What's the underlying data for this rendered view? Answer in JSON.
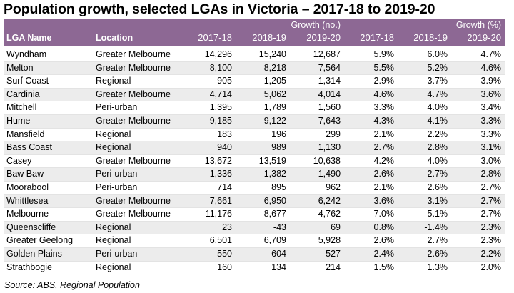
{
  "title": "Population growth, selected LGAs in Victoria – 2017-18 to 2019-20",
  "header": {
    "group_no": "Growth (no.)",
    "group_pct": "Growth (%)",
    "col_name": "LGA Name",
    "col_location": "Location",
    "years": [
      "2017-18",
      "2018-19",
      "2019-20"
    ]
  },
  "rows": [
    {
      "name": "Wyndham",
      "location": "Greater Melbourne",
      "n1": "14,296",
      "n2": "15,240",
      "n3": "12,687",
      "p1": "5.9%",
      "p2": "6.0%",
      "p3": "4.7%"
    },
    {
      "name": "Melton",
      "location": "Greater Melbourne",
      "n1": "8,100",
      "n2": "8,218",
      "n3": "7,564",
      "p1": "5.5%",
      "p2": "5.2%",
      "p3": "4.6%"
    },
    {
      "name": "Surf Coast",
      "location": "Regional",
      "n1": "905",
      "n2": "1,205",
      "n3": "1,314",
      "p1": "2.9%",
      "p2": "3.7%",
      "p3": "3.9%"
    },
    {
      "name": "Cardinia",
      "location": "Greater Melbourne",
      "n1": "4,714",
      "n2": "5,062",
      "n3": "4,014",
      "p1": "4.6%",
      "p2": "4.7%",
      "p3": "3.6%"
    },
    {
      "name": "Mitchell",
      "location": "Peri-urban",
      "n1": "1,395",
      "n2": "1,789",
      "n3": "1,560",
      "p1": "3.3%",
      "p2": "4.0%",
      "p3": "3.4%"
    },
    {
      "name": "Hume",
      "location": "Greater Melbourne",
      "n1": "9,185",
      "n2": "9,122",
      "n3": "7,643",
      "p1": "4.3%",
      "p2": "4.1%",
      "p3": "3.3%"
    },
    {
      "name": "Mansfield",
      "location": "Regional",
      "n1": "183",
      "n2": "196",
      "n3": "299",
      "p1": "2.1%",
      "p2": "2.2%",
      "p3": "3.3%"
    },
    {
      "name": "Bass Coast",
      "location": "Regional",
      "n1": "940",
      "n2": "989",
      "n3": "1,130",
      "p1": "2.7%",
      "p2": "2.8%",
      "p3": "3.1%"
    },
    {
      "name": "Casey",
      "location": "Greater Melbourne",
      "n1": "13,672",
      "n2": "13,519",
      "n3": "10,638",
      "p1": "4.2%",
      "p2": "4.0%",
      "p3": "3.0%"
    },
    {
      "name": "Baw Baw",
      "location": "Peri-urban",
      "n1": "1,336",
      "n2": "1,382",
      "n3": "1,490",
      "p1": "2.6%",
      "p2": "2.7%",
      "p3": "2.8%"
    },
    {
      "name": "Moorabool",
      "location": "Peri-urban",
      "n1": "714",
      "n2": "895",
      "n3": "962",
      "p1": "2.1%",
      "p2": "2.6%",
      "p3": "2.7%"
    },
    {
      "name": "Whittlesea",
      "location": "Greater Melbourne",
      "n1": "7,661",
      "n2": "6,950",
      "n3": "6,242",
      "p1": "3.6%",
      "p2": "3.1%",
      "p3": "2.7%"
    },
    {
      "name": "Melbourne",
      "location": "Greater Melbourne",
      "n1": "11,176",
      "n2": "8,677",
      "n3": "4,762",
      "p1": "7.0%",
      "p2": "5.1%",
      "p3": "2.7%"
    },
    {
      "name": "Queenscliffe",
      "location": "Regional",
      "n1": "23",
      "n2": "-43",
      "n3": "69",
      "p1": "0.8%",
      "p2": "-1.4%",
      "p3": "2.3%"
    },
    {
      "name": "Greater Geelong",
      "location": "Regional",
      "n1": "6,501",
      "n2": "6,709",
      "n3": "5,928",
      "p1": "2.6%",
      "p2": "2.7%",
      "p3": "2.3%"
    },
    {
      "name": "Golden Plains",
      "location": "Peri-urban",
      "n1": "550",
      "n2": "604",
      "n3": "527",
      "p1": "2.4%",
      "p2": "2.6%",
      "p3": "2.2%"
    },
    {
      "name": "Strathbogie",
      "location": "Regional",
      "n1": "160",
      "n2": "134",
      "n3": "214",
      "p1": "1.5%",
      "p2": "1.3%",
      "p3": "2.0%"
    }
  ],
  "source": "Source:  ABS, Regional Population",
  "colors": {
    "header_bg": "#8d6894",
    "header_text": "#ffffff",
    "band": "#ececec"
  }
}
